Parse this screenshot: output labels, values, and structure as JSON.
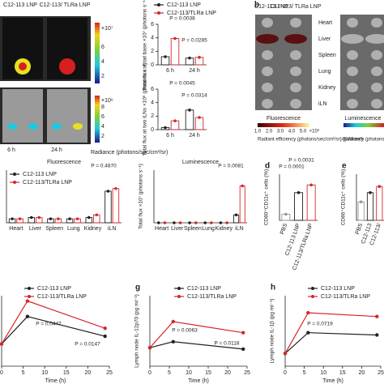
{
  "chart_data": [
    {
      "type": "bar",
      "ylabel": "Total flux at tail base ×10⁷ (photons s⁻¹)",
      "categories": [
        "6 h",
        "24 h"
      ],
      "series": [
        {
          "name": "C12-113 LNP",
          "color": "#222222",
          "values": [
            1.2,
            1.0
          ]
        },
        {
          "name": "C12-113/TLRa LNP",
          "color": "#d62728",
          "values": [
            3.9,
            1.1
          ]
        }
      ],
      "ylim": [
        0,
        6
      ],
      "yticks": [
        0,
        2,
        4,
        6
      ],
      "annotations": [
        "P = 0.0038",
        "P = 0.0285"
      ]
    },
    {
      "type": "bar",
      "ylabel": "Total flux at two iLNs ×10⁶ (photons s⁻¹)",
      "categories": [
        "6 h",
        "24 h"
      ],
      "series": [
        {
          "color": "#222222",
          "values": [
            0.3,
            2.9
          ]
        },
        {
          "color": "#d62728",
          "values": [
            1.3,
            1.8
          ]
        }
      ],
      "ylim": [
        0,
        6
      ],
      "yticks": [
        0,
        2,
        4,
        6
      ],
      "annotations": [
        "P = 0.0045",
        "P = 0.0314"
      ]
    },
    {
      "type": "bar",
      "title": "Fluorescence",
      "categories": [
        "Heart",
        "Liver",
        "Spleen",
        "Lung",
        "Kidney",
        "iLN"
      ],
      "series": [
        {
          "name": "C12-113 LNP",
          "color": "#222222",
          "values": [
            0.15,
            0.2,
            0.15,
            0.15,
            0.2,
            1.2
          ]
        },
        {
          "name": "C12-113/TLRa LNP",
          "color": "#d62728",
          "values": [
            0.15,
            0.2,
            0.15,
            0.15,
            0.3,
            1.3
          ]
        }
      ],
      "ylim": [
        0,
        2
      ],
      "annotations": [
        "P = 0.4870"
      ]
    },
    {
      "type": "bar",
      "title": "Luminescence",
      "ylabel": "Total flux ×10⁷ (photons s⁻¹)",
      "categories": [
        "Heart",
        "Liver",
        "Spleen",
        "Lung",
        "Kidney",
        "iLN"
      ],
      "series": [
        {
          "color": "#222222",
          "values": [
            0,
            0,
            0,
            0,
            0,
            0.3
          ]
        },
        {
          "color": "#d62728",
          "values": [
            0,
            0,
            0,
            0,
            0,
            1.4
          ]
        }
      ],
      "ylim": [
        0,
        2
      ],
      "annotations": [
        "P = 0.0081"
      ]
    },
    {
      "type": "bar",
      "panel_label": "d",
      "ylabel": "CD80⁺CD11c⁺ cells (%)",
      "categories": [
        "PBS",
        "C12-113 LNP",
        "C12-113/TLRa LNP"
      ],
      "series": [
        {
          "colors": [
            "#999999",
            "#222222",
            "#d62728"
          ],
          "values": [
            4,
            18,
            23
          ]
        }
      ],
      "ylim": [
        0,
        30
      ],
      "annotations": [
        "P = 0.0001",
        "P = 0.0031"
      ]
    },
    {
      "type": "bar",
      "panel_label": "e",
      "ylabel": "CD86⁺CD11c⁺ cells (%)",
      "categories": [
        "PBS",
        "C12-113",
        "C12-113/"
      ],
      "series": [
        {
          "colors": [
            "#999999",
            "#222222",
            "#d62728"
          ],
          "values": [
            12,
            18,
            22
          ]
        }
      ],
      "ylim": [
        0,
        30
      ]
    },
    {
      "type": "line",
      "xlabel": "Time (h)",
      "x": [
        0,
        6,
        24
      ],
      "series": [
        {
          "name": "C12-113 LNP",
          "color": "#222222",
          "values": [
            126,
            282,
            170
          ]
        },
        {
          "name": "C12-113/TLRa LNP",
          "color": "#d62728",
          "values": [
            126,
            370,
            215
          ]
        }
      ],
      "xlim": [
        0,
        25
      ],
      "xticks": [
        0,
        5,
        10,
        15,
        20,
        25
      ],
      "ylim": [
        0,
        400
      ],
      "annotations": [
        "P = 0.0447",
        "P = 0.0147"
      ]
    },
    {
      "type": "line",
      "panel_label": "g",
      "xlabel": "Time (h)",
      "ylabel": "Lymph node IL-12p70 (pg ml⁻¹)",
      "x": [
        0,
        6,
        24
      ],
      "series": [
        {
          "name": "C12-113 LNP",
          "color": "#222222",
          "values": [
            105,
            139,
            97
          ]
        },
        {
          "name": "C12-113/TLRa LNP",
          "color": "#d62728",
          "values": [
            105,
            253,
            190
          ]
        }
      ],
      "xlim": [
        0,
        25
      ],
      "xticks": [
        0,
        5,
        10,
        15,
        20,
        25
      ],
      "ylim": [
        0,
        400
      ],
      "annotations": [
        "P = 0.0063",
        "P = 0.0118"
      ]
    },
    {
      "type": "line",
      "panel_label": "h",
      "xlabel": "Time (h)",
      "ylabel": "Lymph node IL-1β (pg ml⁻¹)",
      "x": [
        0,
        6,
        24
      ],
      "series": [
        {
          "name": "C12-113 LNP",
          "color": "#222222",
          "values": [
            72,
            190,
            177
          ]
        },
        {
          "name": "C12-113/TLRa LNP",
          "color": "#d62728",
          "values": [
            72,
            303,
            282
          ]
        }
      ],
      "xlim": [
        0,
        25
      ],
      "xticks": [
        0,
        5,
        10,
        15,
        20,
        25
      ],
      "ylim": [
        0,
        400
      ],
      "annotations": [
        "P = 0.0719"
      ]
    }
  ],
  "panel_a": {
    "columns": [
      "C12-113 LNP",
      "C12-113/ TLRa LNP"
    ],
    "times": [
      "6 h",
      "24 h"
    ],
    "colorbar_top": [
      "×10⁷",
      "6",
      "4",
      "2"
    ],
    "colorbar_bottom": [
      "×10⁶",
      "8",
      "6",
      "4",
      "2"
    ],
    "radiance": "Radiance (photons/sec/cm²/sr)"
  },
  "panel_b": {
    "label": "b",
    "columns": [
      "C12-113 LNP",
      "C12-113/ TLRa LNP"
    ],
    "organs": [
      "Heart",
      "Liver",
      "Spleen",
      "Lung",
      "Kidney",
      "iLN"
    ],
    "fluorescence": "Fluorescence",
    "efficiency": "Radiant efficiency (photons/sec/cm²/sr)/(μW/cm²)",
    "ticks": [
      "1.0",
      "2.0",
      "3.0",
      "4.0",
      "5.0",
      "×10⁹"
    ],
    "luminescence": "Luminescence",
    "radiance": "Radiance (photons/sec/"
  }
}
